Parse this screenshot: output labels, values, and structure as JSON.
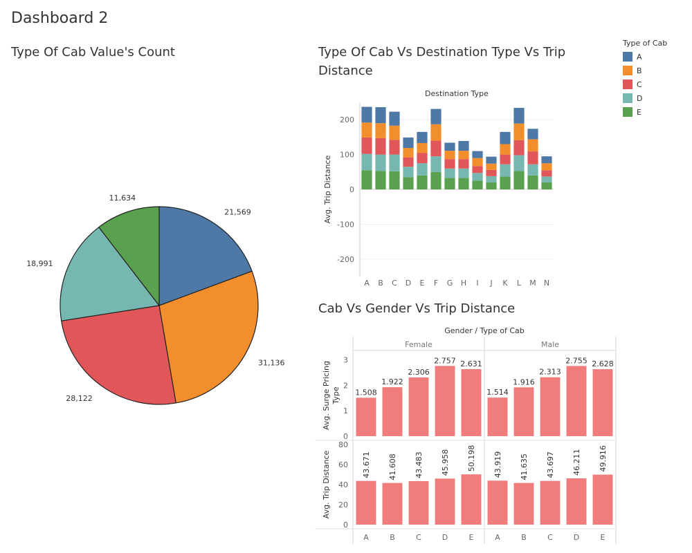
{
  "dashboard": {
    "title": "Dashboard 2"
  },
  "titles": {
    "pie": "Type Of Cab Value's Count",
    "stacked": "Type Of Cab Vs Destination Type Vs Trip Distance",
    "grouped": "Cab Vs Gender Vs Trip Distance"
  },
  "legend": {
    "title": "Type of Cab",
    "items": [
      {
        "label": "A",
        "color": "#4e79a7"
      },
      {
        "label": "B",
        "color": "#f28e2b"
      },
      {
        "label": "C",
        "color": "#e15759"
      },
      {
        "label": "D",
        "color": "#76b7b2"
      },
      {
        "label": "E",
        "color": "#59a14f"
      }
    ]
  },
  "chart_data": [
    {
      "type": "pie",
      "title": "Type Of Cab Value's Count",
      "categories": [
        "A",
        "B",
        "C",
        "D",
        "E"
      ],
      "values": [
        21569,
        31136,
        28122,
        18991,
        11634
      ],
      "labels": [
        "21,569",
        "31,136",
        "28,122",
        "18,991",
        "11,634"
      ],
      "colors": [
        "#4e79a7",
        "#f28e2b",
        "#e15759",
        "#76b7b2",
        "#59a14f"
      ]
    },
    {
      "type": "bar",
      "stacked": true,
      "title": "Type Of Cab Vs Destination Type Vs Trip Distance",
      "xlabel": "Destination Type",
      "ylabel": "Avg. Trip Distance",
      "ylim": [
        -250,
        250
      ],
      "yticks": [
        200,
        100,
        0,
        -100,
        -200
      ],
      "categories": [
        "A",
        "B",
        "C",
        "D",
        "E",
        "F",
        "G",
        "H",
        "I",
        "J",
        "K",
        "L",
        "M",
        "N"
      ],
      "series": [
        {
          "name": "E",
          "color": "#59a14f",
          "values": [
            55,
            53,
            52,
            35,
            40,
            50,
            33,
            33,
            25,
            20,
            37,
            53,
            40,
            20
          ]
        },
        {
          "name": "D",
          "color": "#76b7b2",
          "values": [
            47,
            47,
            48,
            30,
            35,
            45,
            27,
            27,
            22,
            18,
            35,
            45,
            32,
            17
          ]
        },
        {
          "name": "C",
          "color": "#e15759",
          "values": [
            47,
            47,
            42,
            27,
            30,
            45,
            27,
            27,
            20,
            18,
            28,
            43,
            37,
            18
          ]
        },
        {
          "name": "B",
          "color": "#f28e2b",
          "values": [
            43,
            43,
            41,
            27,
            28,
            47,
            24,
            24,
            23,
            18,
            30,
            48,
            35,
            20
          ]
        },
        {
          "name": "A",
          "color": "#4e79a7",
          "values": [
            45,
            46,
            40,
            30,
            32,
            44,
            23,
            28,
            20,
            20,
            35,
            45,
            30,
            20
          ]
        }
      ],
      "grid": true
    },
    {
      "type": "bar",
      "title": "Cab Vs Gender Vs Trip Distance",
      "header": "Gender  /  Type of Cab",
      "panels": [
        "Female",
        "Male"
      ],
      "categories": [
        "A",
        "B",
        "C",
        "D",
        "E"
      ],
      "color": "#f07c7c",
      "rows": [
        {
          "ylabel": "Avg. Surge Pricing Type",
          "ylim": [
            0,
            3.2
          ],
          "yticks": [
            3,
            2,
            1,
            0
          ],
          "values": {
            "Female": [
              1.508,
              1.922,
              2.306,
              2.757,
              2.631
            ],
            "Male": [
              1.514,
              1.916,
              2.313,
              2.755,
              2.628
            ]
          },
          "labels": {
            "Female": [
              "1.508",
              "1.922",
              "2.306",
              "2.757",
              "2.631"
            ],
            "Male": [
              "1.514",
              "1.916",
              "2.313",
              "2.755",
              "2.628"
            ]
          }
        },
        {
          "ylabel": "Avg. Trip Distance",
          "ylim": [
            0,
            80
          ],
          "yticks": [
            80,
            60,
            40,
            20,
            0
          ],
          "values": {
            "Female": [
              43.671,
              41.608,
              43.483,
              45.958,
              50.198
            ],
            "Male": [
              43.919,
              41.635,
              43.697,
              46.211,
              49.916
            ]
          },
          "labels": {
            "Female": [
              "43.671",
              "41.608",
              "43.483",
              "45.958",
              "50.198"
            ],
            "Male": [
              "43.919",
              "41.635",
              "43.697",
              "46.211",
              "49.916"
            ]
          }
        }
      ]
    }
  ]
}
